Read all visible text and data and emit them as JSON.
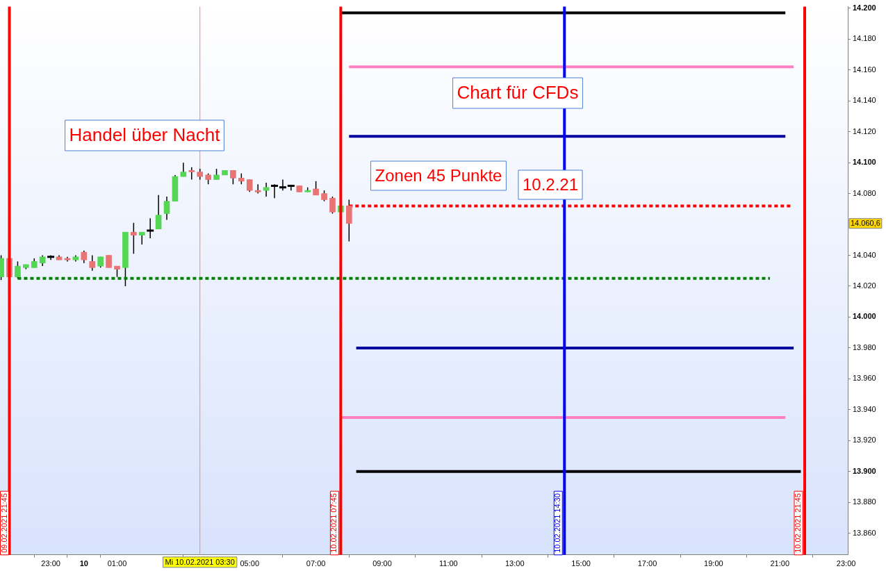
{
  "chart_data": {
    "type": "candlestick",
    "annotations": [
      "Handel über Nacht",
      "Chart für CFDs",
      "Zonen 45 Punkte",
      "10.2.21",
      "14.060,6"
    ],
    "x": [
      "2021-02-09T21:30",
      "2021-02-09T21:45",
      "2021-02-09T22:00",
      "2021-02-09T22:15",
      "2021-02-09T22:30",
      "2021-02-09T22:45",
      "2021-02-09T23:00",
      "2021-02-09T23:15",
      "2021-02-09T23:30",
      "2021-02-09T23:45",
      "2021-02-10T00:00",
      "2021-02-10T00:15",
      "2021-02-10T00:30",
      "2021-02-10T00:45",
      "2021-02-10T01:00",
      "2021-02-10T01:15",
      "2021-02-10T01:30",
      "2021-02-10T01:45",
      "2021-02-10T02:00",
      "2021-02-10T02:15",
      "2021-02-10T02:30",
      "2021-02-10T02:45",
      "2021-02-10T03:00",
      "2021-02-10T03:15",
      "2021-02-10T03:30",
      "2021-02-10T03:45",
      "2021-02-10T04:00",
      "2021-02-10T04:15",
      "2021-02-10T04:30",
      "2021-02-10T04:45",
      "2021-02-10T05:00",
      "2021-02-10T05:15",
      "2021-02-10T05:30",
      "2021-02-10T05:45",
      "2021-02-10T06:00",
      "2021-02-10T06:15",
      "2021-02-10T06:30",
      "2021-02-10T06:45",
      "2021-02-10T07:00",
      "2021-02-10T07:15",
      "2021-02-10T07:30",
      "2021-02-10T07:45",
      "2021-02-10T08:00"
    ],
    "ohlc": [
      [
        14026,
        14040,
        14024,
        14038
      ],
      [
        14038,
        14038,
        14026,
        14026
      ],
      [
        14026,
        14036,
        14025,
        14033
      ],
      [
        14032,
        14034,
        14031,
        14034
      ],
      [
        14032,
        14038,
        14032,
        14036
      ],
      [
        14035,
        14040,
        14033,
        14039
      ],
      [
        14039,
        14040,
        14037,
        14039
      ],
      [
        14039,
        14040,
        14037,
        14037
      ],
      [
        14038,
        14039,
        14036,
        14037
      ],
      [
        14037,
        14040,
        14036,
        14039
      ],
      [
        14042,
        14043,
        14035,
        14037
      ],
      [
        14036,
        14040,
        14030,
        14032
      ],
      [
        14033,
        14039,
        14032,
        14039
      ],
      [
        14040,
        14040,
        14032,
        14032
      ],
      [
        14033,
        14033,
        14026,
        14031
      ],
      [
        14032,
        14055,
        14020,
        14055
      ],
      [
        14055,
        14061,
        14041,
        14053
      ],
      [
        14053,
        14055,
        14047,
        14055
      ],
      [
        14056,
        14064,
        14051,
        14056
      ],
      [
        14057,
        14079,
        14057,
        14066
      ],
      [
        14067,
        14078,
        14063,
        14075
      ],
      [
        14075,
        14092,
        14075,
        14091
      ],
      [
        14091,
        14100,
        14091,
        14094
      ],
      [
        14095,
        14097,
        14089,
        14094
      ],
      [
        14094,
        14096,
        14089,
        14091
      ],
      [
        14092,
        14093,
        14086,
        14089
      ],
      [
        14089,
        14096,
        14089,
        14092
      ],
      [
        14092,
        14095,
        14092,
        14095
      ],
      [
        14095,
        14095,
        14086,
        14090
      ],
      [
        14090,
        14093,
        14086,
        14088
      ],
      [
        14089,
        14089,
        14081,
        14082
      ],
      [
        14082,
        14086,
        14080,
        14081
      ],
      [
        14082,
        14087,
        14078,
        14084
      ],
      [
        14085,
        14086,
        14077,
        14085
      ],
      [
        14084,
        14089,
        14082,
        14084
      ],
      [
        14085,
        14085,
        14082,
        14085
      ],
      [
        14085,
        14085,
        14081,
        14081
      ],
      [
        14081,
        14084,
        14081,
        14082
      ],
      [
        14083,
        14088,
        14079,
        14079
      ],
      [
        14080,
        14082,
        14075,
        14076
      ],
      [
        14077,
        14078,
        14067,
        14068
      ],
      [
        14068,
        14072,
        14068,
        14072
      ],
      [
        14072,
        14076,
        14049,
        14060.6
      ]
    ],
    "colors": [
      "#55d655",
      "#e87474",
      "#55d655",
      "#55d655",
      "#55d655",
      "#55d655",
      "#000000",
      "#e87474",
      "#e87474",
      "#55d655",
      "#e87474",
      "#e87474",
      "#55d655",
      "#e87474",
      "#e87474",
      "#55d655",
      "#e87474",
      "#55d655",
      "#000000",
      "#55d655",
      "#55d655",
      "#55d655",
      "#55d655",
      "#e87474",
      "#e87474",
      "#e87474",
      "#55d655",
      "#55d655",
      "#e87474",
      "#e87474",
      "#e87474",
      "#e87474",
      "#55d655",
      "#000000",
      "#000000",
      "#000000",
      "#e87474",
      "#55d655",
      "#e87474",
      "#e87474",
      "#e87474",
      "#55d655",
      "#e87474"
    ],
    "series": [
      {
        "type": "line",
        "x": [
          "2021-02-10T07:45",
          "2021-02-10T21:10"
        ],
        "values": [
          14197,
          14197
        ],
        "color": "#000000",
        "line_style": "solid"
      },
      {
        "type": "line",
        "x": [
          "2021-02-10T08:00",
          "2021-02-10T21:25"
        ],
        "values": [
          14162,
          14162
        ],
        "color": "#ff80c0",
        "line_style": "solid"
      },
      {
        "type": "line",
        "x": [
          "2021-02-10T08:00",
          "2021-02-10T21:10"
        ],
        "values": [
          14117,
          14117
        ],
        "color": "#0000a0",
        "line_style": "solid"
      },
      {
        "type": "line",
        "x": [
          "2021-02-10T08:00",
          "2021-02-10T21:24"
        ],
        "values": [
          14072,
          14072
        ],
        "color": "#ff0000",
        "line_style": "dotted"
      },
      {
        "type": "line",
        "x": [
          "2021-02-09T22:00",
          "2021-02-10T20:42"
        ],
        "values": [
          14025,
          14025
        ],
        "color": "#008000",
        "line_style": "dotted"
      },
      {
        "type": "line",
        "x": [
          "2021-02-10T08:13",
          "2021-02-10T21:25"
        ],
        "values": [
          13980,
          13980
        ],
        "color": "#0000a0",
        "line_style": "solid"
      },
      {
        "type": "line",
        "x": [
          "2021-02-10T07:45",
          "2021-02-10T21:10"
        ],
        "values": [
          13935,
          13935
        ],
        "color": "#ff80c0",
        "line_style": "solid"
      },
      {
        "type": "line",
        "x": [
          "2021-02-10T08:13",
          "2021-02-10T21:38"
        ],
        "values": [
          13900,
          13900
        ],
        "color": "#000000",
        "line_style": "solid"
      }
    ],
    "ref_lines": [
      {
        "axis": "x",
        "value": "2021-02-09T21:45",
        "label": "09.02.2021 21:45",
        "color": "#ff0000"
      },
      {
        "axis": "x",
        "value": "2021-02-10T07:45",
        "label": "10.02.2021 07:45",
        "color": "#ff0000"
      },
      {
        "axis": "x",
        "value": "2021-02-10T14:30",
        "label": "10.02.2021 14:30",
        "color": "#0000ff"
      },
      {
        "axis": "x",
        "value": "2021-02-10T21:45",
        "label": "10.02.2021 21:45",
        "color": "#ff0000"
      },
      {
        "axis": "x",
        "value": "2021-02-10T03:30",
        "label": "Mi 10.02.2021 03:30",
        "color": "#ff8080"
      }
    ],
    "xlim": [
      "2021-02-09T21:28",
      "2021-02-10T23:03"
    ],
    "xticks": [
      {
        "value": "2021-02-09T23:00",
        "label": "23:00"
      },
      {
        "value": "2021-02-10T00:00",
        "label": "10"
      },
      {
        "value": "2021-02-10T01:00",
        "label": "01:00"
      },
      {
        "value": "2021-02-10T05:00",
        "label": "05:00"
      },
      {
        "value": "2021-02-10T07:00",
        "label": "07:00"
      },
      {
        "value": "2021-02-10T09:00",
        "label": "09:00"
      },
      {
        "value": "2021-02-10T11:00",
        "label": "11:00"
      },
      {
        "value": "2021-02-10T13:00",
        "label": "13:00"
      },
      {
        "value": "2021-02-10T15:00",
        "label": "15:00"
      },
      {
        "value": "2021-02-10T17:00",
        "label": "17:00"
      },
      {
        "value": "2021-02-10T19:00",
        "label": "19:00"
      },
      {
        "value": "2021-02-10T21:00",
        "label": "21:00"
      },
      {
        "value": "2021-02-10T23:00",
        "label": "23:00"
      }
    ],
    "ylim": [
      13846,
      14201
    ],
    "yticks": [
      {
        "value": 13860,
        "label": "13.860"
      },
      {
        "value": 13880,
        "label": "13.880"
      },
      {
        "value": 13900,
        "label": "13.900"
      },
      {
        "value": 13920,
        "label": "13.920"
      },
      {
        "value": 13940,
        "label": "13.940"
      },
      {
        "value": 13960,
        "label": "13.960"
      },
      {
        "value": 13980,
        "label": "13.980"
      },
      {
        "value": 14000,
        "label": "14.000"
      },
      {
        "value": 14020,
        "label": "14.020"
      },
      {
        "value": 14040,
        "label": "14.040"
      },
      {
        "value": 14080,
        "label": "14.080"
      },
      {
        "value": 14100,
        "label": "14.100"
      },
      {
        "value": 14120,
        "label": "14.120"
      },
      {
        "value": 14140,
        "label": "14.140"
      },
      {
        "value": 14160,
        "label": "14.160"
      },
      {
        "value": 14180,
        "label": "14.180"
      },
      {
        "value": 14200,
        "label": "14.200"
      }
    ],
    "grid": false,
    "legend": false,
    "marker": "none"
  }
}
